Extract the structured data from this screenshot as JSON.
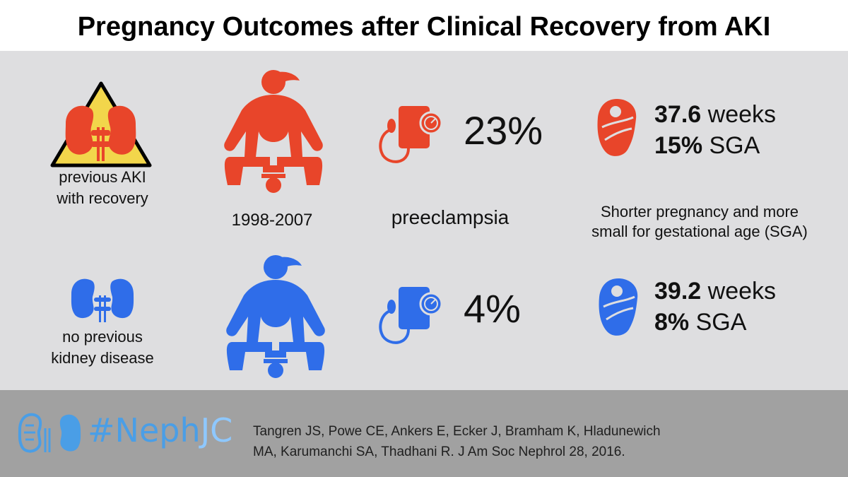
{
  "title": "Pregnancy Outcomes after Clinical Recovery from AKI",
  "colors": {
    "aki": "#e8452a",
    "control": "#2f6de9",
    "panel": "#dedee0",
    "footer": "#a1a1a1",
    "warning": "#f2d64b"
  },
  "rows": {
    "aki": {
      "group_label_line1": "previous AKI",
      "group_label_line2": "with recovery",
      "preeclampsia_rate": "23%",
      "weeks_value": "37.6",
      "weeks_unit": " weeks",
      "sga_value": "15%",
      "sga_unit": " SGA"
    },
    "control": {
      "group_label_line1": "no previous",
      "group_label_line2": "kidney disease",
      "preeclampsia_rate": "4%",
      "weeks_value": "39.2",
      "weeks_unit": " weeks",
      "sga_value": "8%",
      "sga_unit": " SGA"
    }
  },
  "labels": {
    "years": "1998-2007",
    "preeclampsia": "preeclampsia",
    "finding_line1": "Shorter pregnancy and more",
    "finding_line2": "small for gestational age (SGA)"
  },
  "footer": {
    "brand_hash": "#Neph",
    "brand_jc": "JC",
    "citation_line1": "Tangren JS, Powe CE, Ankers E, Ecker J, Bramham K, Hladunewich",
    "citation_line2": "MA, Karumanchi SA, Thadhani R. J Am Soc Nephrol 28, 2016."
  },
  "icons": [
    "warning-triangle-icon",
    "kidneys-icon",
    "pregnant-woman-icon",
    "blood-pressure-cuff-icon",
    "swaddled-baby-icon"
  ]
}
